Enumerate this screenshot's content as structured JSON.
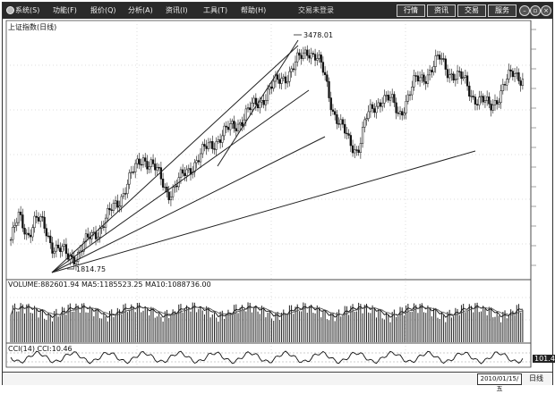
{
  "menu": {
    "items": [
      {
        "label": "系统(S)"
      },
      {
        "label": "功能(F)"
      },
      {
        "label": "报价(Q)"
      },
      {
        "label": "分析(A)"
      },
      {
        "label": "资讯(I)"
      },
      {
        "label": "工具(T)"
      },
      {
        "label": "帮助(H)"
      }
    ],
    "app_title": "交易未登录",
    "buttons": [
      {
        "label": "行情"
      },
      {
        "label": "资讯"
      },
      {
        "label": "交易"
      },
      {
        "label": "服务"
      }
    ]
  },
  "main_chart": {
    "title": "上证指数(日线)",
    "high_label": "3478.01",
    "low_label": "1814.75"
  },
  "volume_panel": {
    "label": "VOLUME:882601.94  MA5:1185523.25  MA10:1088736.00"
  },
  "cci_panel": {
    "label": "CCI(14)  CCI:10.46",
    "value": "101.4"
  },
  "status": {
    "date": "2010/01/15/五",
    "period": "日线"
  },
  "chart_data": {
    "type": "candlestick",
    "title": "上证指数(日线)",
    "annotations": [
      {
        "text": "3478.01",
        "kind": "high",
        "value": 3478.01
      },
      {
        "text": "1814.75",
        "kind": "low",
        "value": 1814.75
      }
    ],
    "close_path": [
      1960,
      2130,
      2010,
      2120,
      2060,
      1930,
      1870,
      1814.75,
      1850,
      1920,
      2000,
      2080,
      2160,
      2260,
      2400,
      2500,
      2620,
      2560,
      2450,
      2340,
      2380,
      2470,
      2560,
      2620,
      2700,
      2760,
      2800,
      2860,
      2920,
      2980,
      3050,
      3120,
      3180,
      3250,
      3300,
      3380,
      3478.01,
      3400,
      3250,
      3000,
      2850,
      2720,
      2680,
      2900,
      3000,
      3100,
      3050,
      2950,
      3080,
      3200,
      3250,
      3320,
      3380,
      3300,
      3250,
      3200,
      3100,
      3050,
      3000,
      3100,
      3200,
      3277,
      3250
    ],
    "volume_ma": [
      "MA5",
      "MA10"
    ],
    "grid": true,
    "indicators": [
      "VOLUME",
      "CCI(14)"
    ]
  }
}
